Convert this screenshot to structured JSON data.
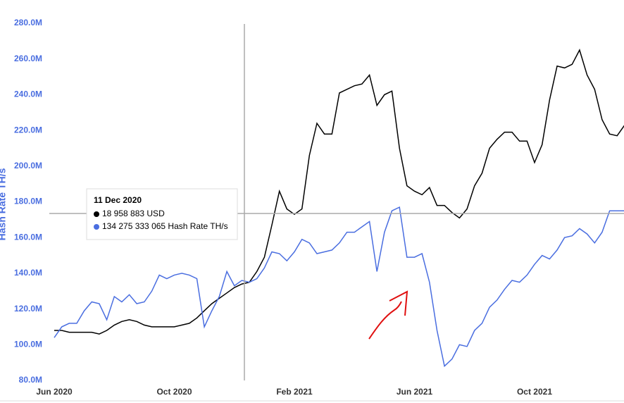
{
  "chart_data": {
    "type": "line",
    "y_label": "Hash Rate TH/s",
    "categories": [
      "Jun 2020",
      null,
      null,
      null,
      null,
      null,
      null,
      null,
      null,
      null,
      null,
      null,
      null,
      null,
      null,
      null,
      "Oct 2020",
      null,
      null,
      null,
      null,
      null,
      null,
      null,
      null,
      null,
      null,
      null,
      null,
      null,
      null,
      null,
      "Feb 2021",
      null,
      null,
      null,
      null,
      null,
      null,
      null,
      null,
      null,
      null,
      null,
      null,
      null,
      null,
      null,
      "Jun 2021",
      null,
      null,
      null,
      null,
      null,
      null,
      null,
      null,
      null,
      null,
      null,
      null,
      null,
      null,
      null,
      "Oct 2021",
      null,
      null,
      null,
      null,
      null,
      null,
      null,
      null,
      null,
      null,
      null,
      null
    ],
    "series": [
      {
        "name": "USD",
        "color": "#000000",
        "values": [
          108,
          108,
          107,
          107,
          107,
          107,
          106,
          108,
          111,
          113,
          114,
          113,
          111,
          110,
          110,
          110,
          110,
          111,
          112,
          115,
          119,
          123,
          126,
          129,
          132,
          134,
          135,
          141,
          149,
          167,
          186,
          176,
          173,
          176,
          206,
          224,
          218,
          218,
          241,
          243,
          245,
          246,
          251,
          234,
          240,
          242,
          210,
          189,
          186,
          184,
          188,
          178,
          178,
          174,
          171,
          176,
          189,
          196,
          210,
          215,
          219,
          219,
          214,
          214,
          202,
          212,
          237,
          256,
          255,
          257,
          265,
          251,
          243,
          226,
          218,
          217,
          223
        ]
      },
      {
        "name": "Hash Rate TH/s",
        "color": "#4a6ee0",
        "values": [
          104,
          110,
          112,
          112,
          119,
          124,
          123,
          114,
          127,
          124,
          128,
          123,
          124,
          130,
          139,
          137,
          139,
          140,
          139,
          137,
          110,
          119,
          127,
          141,
          133,
          136,
          135,
          137,
          143,
          152,
          151,
          147,
          152,
          159,
          157,
          151,
          152,
          153,
          157,
          163,
          163,
          166,
          169,
          141,
          163,
          175,
          177,
          149,
          149,
          151,
          135,
          108,
          88,
          92,
          100,
          99,
          108,
          112,
          121,
          125,
          131,
          136,
          135,
          139,
          145,
          150,
          148,
          153,
          160,
          161,
          165,
          162,
          157,
          163,
          175,
          175,
          175
        ]
      }
    ],
    "ylim": [
      80,
      280
    ],
    "yticks": [
      {
        "value": 80,
        "label": "80.0M"
      },
      {
        "value": 100,
        "label": "100.0M"
      },
      {
        "value": 120,
        "label": "120.0M"
      },
      {
        "value": 140,
        "label": "140.0M"
      },
      {
        "value": 160,
        "label": "160.0M"
      },
      {
        "value": 180,
        "label": "180.0M"
      },
      {
        "value": 200,
        "label": "200.0M"
      },
      {
        "value": 220,
        "label": "220.0M"
      },
      {
        "value": 240,
        "label": "240.0M"
      },
      {
        "value": 260,
        "label": "260.0M"
      },
      {
        "value": 280,
        "label": "280.0M"
      }
    ],
    "tooltip": {
      "title": "11 Dec 2020",
      "items": [
        "18 958 883 USD",
        "134 275 333 065 Hash Rate TH/s"
      ]
    }
  }
}
